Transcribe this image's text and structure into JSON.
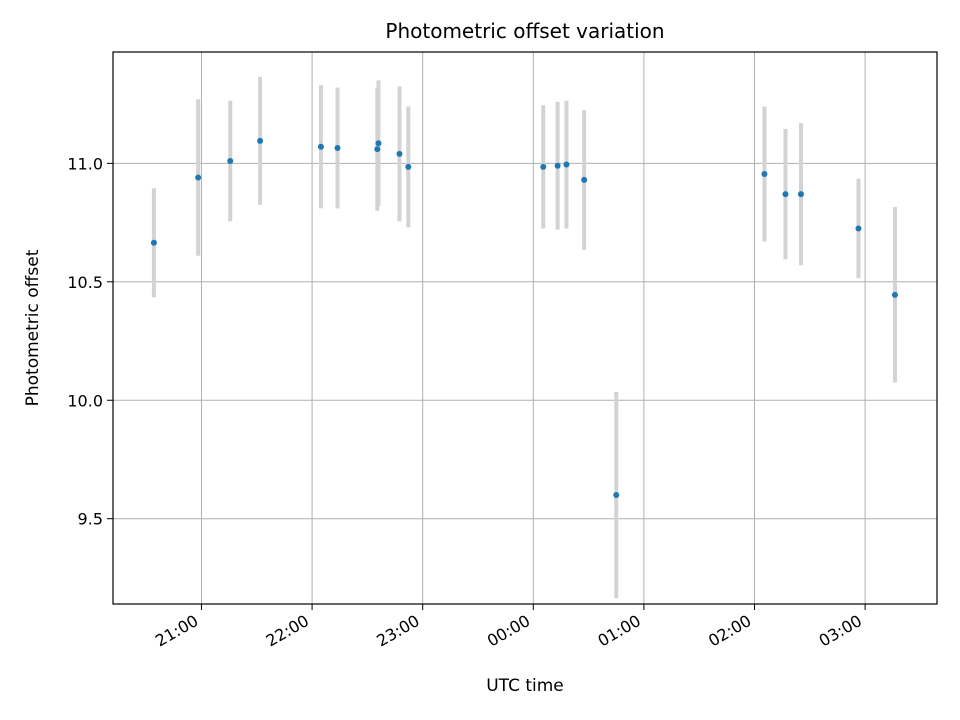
{
  "chart_data": {
    "type": "scatter",
    "title": "Photometric offset variation",
    "xlabel": "UTC time",
    "ylabel": "Photometric offset",
    "x_unit": "hours since 00:00 UTC",
    "xlim": [
      -3.8,
      3.65
    ],
    "ylim": [
      9.14,
      11.47
    ],
    "grid": true,
    "x_ticks": [
      {
        "value": -3,
        "label": "21:00"
      },
      {
        "value": -2,
        "label": "22:00"
      },
      {
        "value": -1,
        "label": "23:00"
      },
      {
        "value": 0,
        "label": "00:00"
      },
      {
        "value": 1,
        "label": "01:00"
      },
      {
        "value": 2,
        "label": "02:00"
      },
      {
        "value": 3,
        "label": "03:00"
      }
    ],
    "y_ticks": [
      {
        "value": 9.5,
        "label": "9.5"
      },
      {
        "value": 10.0,
        "label": "10.0"
      },
      {
        "value": 10.5,
        "label": "10.5"
      },
      {
        "value": 11.0,
        "label": "11.0"
      }
    ],
    "colors": {
      "points": "#1f77b4",
      "errorbars": "#d3d3d3",
      "grid": "#b0b0b0"
    },
    "points": [
      {
        "x": -3.43,
        "y": 10.665,
        "err": 0.23
      },
      {
        "x": -3.03,
        "y": 10.94,
        "err": 0.33
      },
      {
        "x": -2.74,
        "y": 11.01,
        "err": 0.255
      },
      {
        "x": -2.47,
        "y": 11.095,
        "err": 0.27
      },
      {
        "x": -1.92,
        "y": 11.07,
        "err": 0.26
      },
      {
        "x": -1.77,
        "y": 11.065,
        "err": 0.255
      },
      {
        "x": -1.41,
        "y": 11.06,
        "err": 0.26
      },
      {
        "x": -1.4,
        "y": 11.085,
        "err": 0.265
      },
      {
        "x": -1.21,
        "y": 11.04,
        "err": 0.285
      },
      {
        "x": -1.13,
        "y": 10.985,
        "err": 0.255
      },
      {
        "x": 0.09,
        "y": 10.985,
        "err": 0.26
      },
      {
        "x": 0.22,
        "y": 10.99,
        "err": 0.27
      },
      {
        "x": 0.3,
        "y": 10.995,
        "err": 0.27
      },
      {
        "x": 0.46,
        "y": 10.93,
        "err": 0.295
      },
      {
        "x": 0.75,
        "y": 9.6,
        "err": 0.435
      },
      {
        "x": 2.09,
        "y": 10.955,
        "err": 0.285
      },
      {
        "x": 2.28,
        "y": 10.87,
        "err": 0.275
      },
      {
        "x": 2.42,
        "y": 10.87,
        "err": 0.3
      },
      {
        "x": 2.94,
        "y": 10.725,
        "err": 0.21
      },
      {
        "x": 3.27,
        "y": 10.445,
        "err": 0.37
      }
    ]
  }
}
